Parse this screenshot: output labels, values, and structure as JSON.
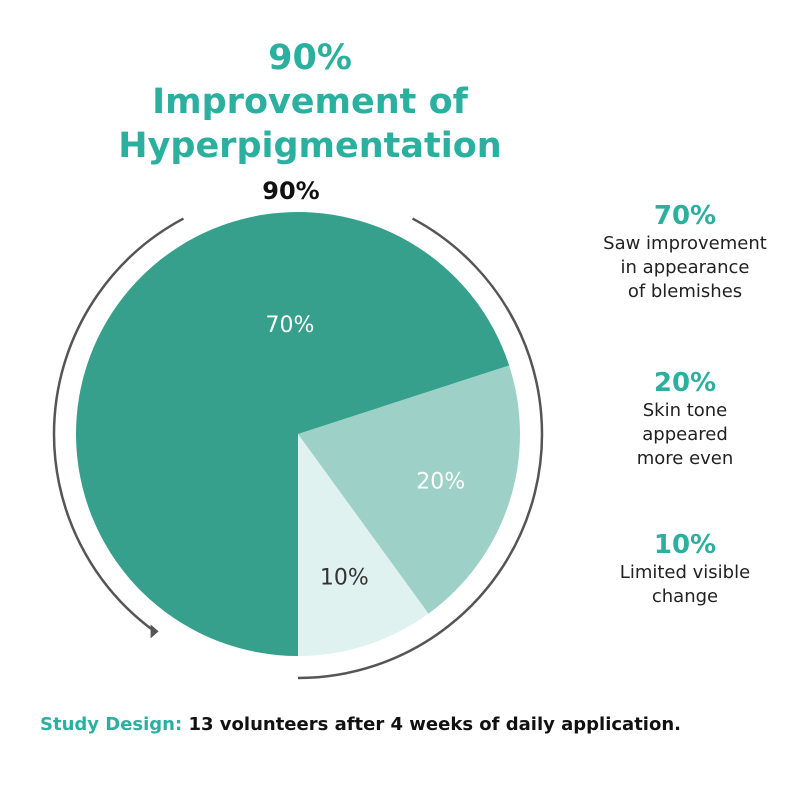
{
  "title": {
    "line1": "90%",
    "line2": "Improvement of",
    "line3": "Hyperpigmentation"
  },
  "colors": {
    "accent": "#2bb0a0",
    "slice_dark": "#36a08c",
    "slice_medium": "#9dd1c8",
    "slice_light": "#e0f2ef",
    "ring": "#555555"
  },
  "chart_data": {
    "type": "pie",
    "title": "90% Improvement of Hyperpigmentation",
    "outer_label": "90%",
    "slices": [
      {
        "label": "70%",
        "value": 70,
        "description": "Saw improvement in appearance of blemishes",
        "color": "#36a08c",
        "label_color": "#ffffff"
      },
      {
        "label": "20%",
        "value": 20,
        "description": "Skin tone appeared more even",
        "color": "#9dd1c8",
        "label_color": "#ffffff"
      },
      {
        "label": "10%",
        "value": 10,
        "description": "Limited visible change",
        "color": "#e0f2ef",
        "label_color": "#333333"
      }
    ],
    "arc_indicator": {
      "covers_percent": 90,
      "label": "90%"
    }
  },
  "legend": [
    {
      "value": "70%",
      "description": "Saw improvement\nin appearance\nof blemishes"
    },
    {
      "value": "20%",
      "description": "Skin tone\nappeared\nmore even"
    },
    {
      "value": "10%",
      "description": "Limited visible\nchange"
    }
  ],
  "footer": {
    "label": "Study Design:",
    "text": "13 volunteers after 4 weeks of daily application."
  }
}
